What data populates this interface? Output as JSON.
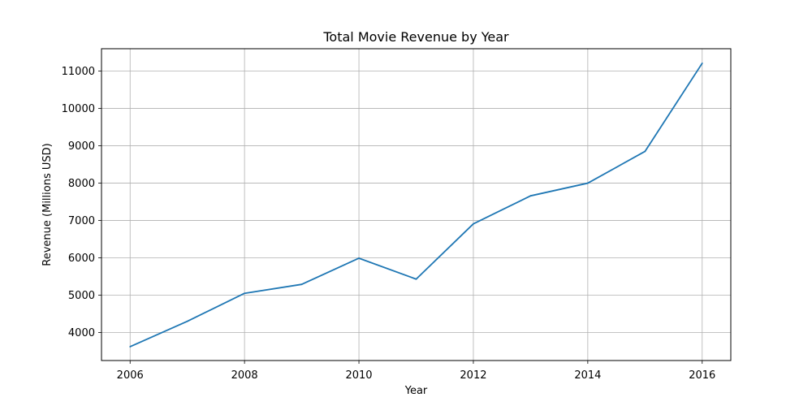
{
  "chart_data": {
    "type": "line",
    "title": "Total Movie Revenue by Year",
    "xlabel": "Year",
    "ylabel": "Revenue (Millions USD)",
    "xlim": [
      2005.5,
      2016.5
    ],
    "ylim": [
      3250,
      11600
    ],
    "xticks": [
      2006,
      2008,
      2010,
      2012,
      2014,
      2016
    ],
    "yticks": [
      4000,
      5000,
      6000,
      7000,
      8000,
      9000,
      10000,
      11000
    ],
    "grid": true,
    "series_color": "#1f77b4",
    "x": [
      2006,
      2007,
      2008,
      2009,
      2010,
      2011,
      2012,
      2013,
      2014,
      2015,
      2016
    ],
    "values": [
      3620,
      4300,
      5050,
      5290,
      5990,
      5430,
      6910,
      7660,
      8000,
      8850,
      11210
    ]
  }
}
